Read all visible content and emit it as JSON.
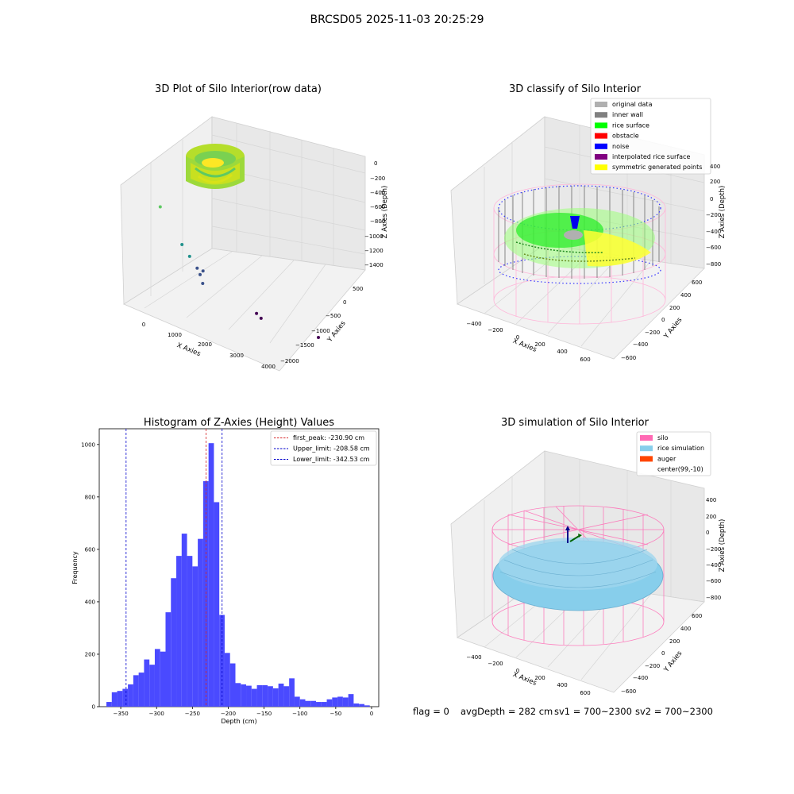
{
  "page": {
    "title": "BRCSD05 2025-11-03 20:25:29",
    "footer": {
      "flag": "flag = 0",
      "avg": "avgDepth = 282 cm",
      "sv1": "sv1 = 700~2300",
      "sv2": "sv2 = 700~2300"
    }
  },
  "chart_data": [
    {
      "type": "scatter",
      "title": "3D Plot of Silo Interior(row data)",
      "xlabel": "X Axies",
      "ylabel": "Y Axies",
      "zlabel": "Z Axies (Depth)",
      "xticks": [
        "0",
        "1000",
        "2000",
        "3000",
        "4000"
      ],
      "yticks": [
        "500",
        "0",
        "−500",
        "−1000",
        "−1500",
        "−2000"
      ],
      "zticks": [
        "0",
        "−200",
        "−400",
        "−600",
        "−800",
        "−1000",
        "−1200",
        "−1400"
      ],
      "xlim": [
        -400,
        4200
      ],
      "ylim": [
        -2100,
        700
      ],
      "zlim": [
        -1500,
        100
      ],
      "outliers": [
        {
          "x": 150,
          "y": -400,
          "z": -420
        },
        {
          "x": 1300,
          "y": 100,
          "z": -700
        },
        {
          "x": 1500,
          "y": 50,
          "z": -800
        },
        {
          "x": 1700,
          "y": 0,
          "z": -900
        },
        {
          "x": 1800,
          "y": -100,
          "z": -920
        },
        {
          "x": 1750,
          "y": -50,
          "z": -960
        },
        {
          "x": 1700,
          "y": -200,
          "z": -1050
        },
        {
          "x": 2900,
          "y": -800,
          "z": -1250
        },
        {
          "x": 3000,
          "y": -850,
          "z": -1290
        },
        {
          "x": 4000,
          "y": -1800,
          "z": -1400
        }
      ]
    },
    {
      "type": "scatter",
      "title": "3D classify of Silo Interior",
      "xlabel": "X Axies",
      "ylabel": "Y Axies",
      "zlabel": "Z Axies (Depth)",
      "xticks": [
        "−400",
        "−200",
        "0",
        "200",
        "400",
        "600"
      ],
      "yticks": [
        "600",
        "400",
        "200",
        "0",
        "−200",
        "−400",
        "−600"
      ],
      "zticks": [
        "400",
        "200",
        "0",
        "−200",
        "−400",
        "−600",
        "−800"
      ],
      "legend_position": "top-right",
      "legend": [
        {
          "label": "original data",
          "color": "#b0b0b0"
        },
        {
          "label": "inner wall",
          "color": "#808080"
        },
        {
          "label": "rice surface",
          "color": "#00ff00"
        },
        {
          "label": "obstacle",
          "color": "#ff0000"
        },
        {
          "label": "noise",
          "color": "#0000ff"
        },
        {
          "label": "interpolated rice surface",
          "color": "#800080"
        },
        {
          "label": "symmetric generated points",
          "color": "#ffff00"
        }
      ]
    },
    {
      "type": "bar",
      "title": "Histogram of Z-Axies (Height) Values",
      "xlabel": "Depth (cm)",
      "ylabel": "Frequency",
      "xlim": [
        -380,
        10
      ],
      "ylim": [
        0,
        1060
      ],
      "xticks": [
        -350,
        -300,
        -250,
        -200,
        -150,
        -100,
        -50,
        0
      ],
      "xtick_labels": [
        "−350",
        "−300",
        "−250",
        "−200",
        "−150",
        "−100",
        "−50",
        "0"
      ],
      "yticks": [
        0,
        200,
        400,
        600,
        800,
        1000
      ],
      "bin_start": -370,
      "bin_width": 7.5,
      "values": [
        18,
        55,
        60,
        68,
        85,
        120,
        130,
        180,
        160,
        220,
        210,
        360,
        490,
        575,
        660,
        575,
        535,
        640,
        860,
        1005,
        780,
        350,
        205,
        165,
        90,
        85,
        80,
        68,
        82,
        82,
        78,
        70,
        88,
        78,
        108,
        38,
        28,
        22,
        22,
        18,
        18,
        28,
        35,
        38,
        35,
        48,
        12,
        10,
        5
      ],
      "bar_color": "#4a4aff",
      "legend_position": "top-right",
      "lines": [
        {
          "label": "first_peak: -230.90 cm",
          "x": -230.9,
          "color": "#d62728"
        },
        {
          "label": "Upper_limit: -208.58 cm",
          "x": -208.58,
          "color": "#0000cc"
        },
        {
          "label": "Lower_limit: -342.53 cm",
          "x": -342.53,
          "color": "#0000cc"
        }
      ]
    },
    {
      "type": "scatter",
      "title": "3D simulation of Silo Interior",
      "xlabel": "X Axies",
      "ylabel": "Y Axies",
      "zlabel": "Z Axies (Depth)",
      "xticks": [
        "−400",
        "−200",
        "0",
        "200",
        "400",
        "600"
      ],
      "yticks": [
        "600",
        "400",
        "200",
        "0",
        "−200",
        "−400",
        "−600"
      ],
      "zticks": [
        "400",
        "200",
        "0",
        "−200",
        "−400",
        "−600",
        "−800"
      ],
      "legend_position": "top-right",
      "legend": [
        {
          "label": "silo",
          "color": "#ff69b4"
        },
        {
          "label": "rice simulation",
          "color": "#87ceeb"
        },
        {
          "label": "auger",
          "color": "#ff4500"
        },
        {
          "label": "center(99,-10)",
          "color": "#ffffff"
        }
      ]
    }
  ]
}
